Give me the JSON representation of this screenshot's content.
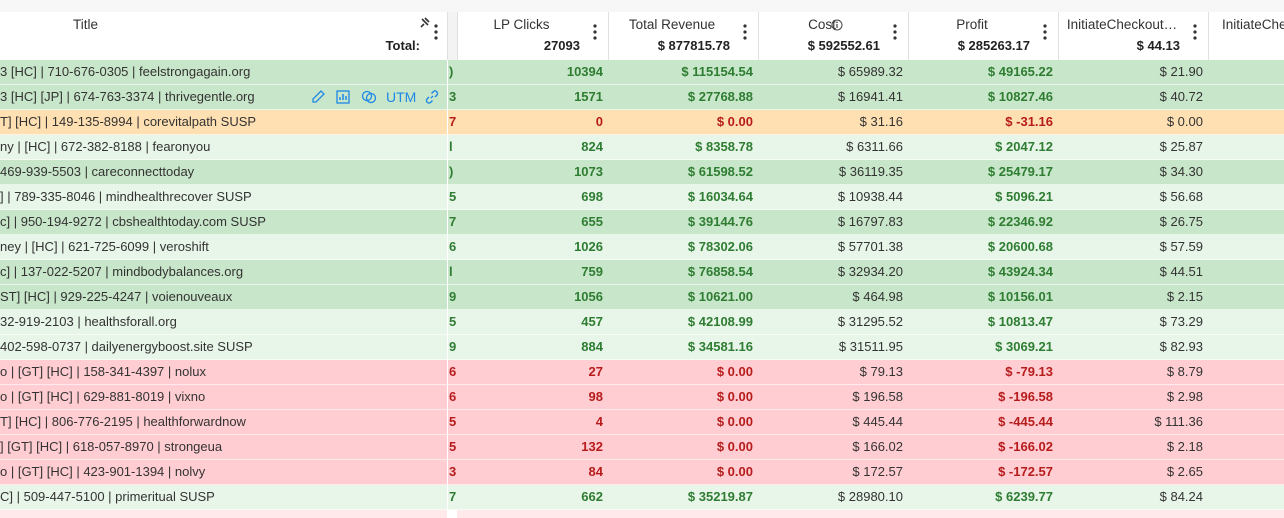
{
  "header": {
    "title_column": {
      "title": "Title",
      "total": "Total:"
    },
    "columns": [
      {
        "title": "LP Clicks",
        "total": "27093"
      },
      {
        "title": "Total Revenue",
        "total": "$ 877815.78"
      },
      {
        "title": "Cost",
        "total": "$ 592552.61"
      },
      {
        "title": "Profit",
        "total": "$ 285263.17"
      },
      {
        "title": "InitiateCheckout…",
        "total": "$ 44.13"
      },
      {
        "title": "InitiateChe"
      }
    ]
  },
  "rows": [
    {
      "color": "#c8e6c9",
      "value_color": "#2e7d32",
      "tail": ")",
      "title": "3 [HC] | 710-676-0305 | feelstrongagain.org",
      "clicks": 10394,
      "revenue": "$ 115154.54",
      "cost": "$ 65989.32",
      "profit": "$ 49165.22",
      "checkout": "$ 21.90"
    },
    {
      "color": "#c8e6c9",
      "value_color": "#2e7d32",
      "tail": "3",
      "title": "3 [HC] [JP] | 674-763-3374 | thrivegentle.org",
      "clicks": 1571,
      "revenue": "$ 27768.88",
      "cost": "$ 16941.41",
      "profit": "$ 10827.46",
      "checkout": "$ 40.72",
      "actions": {
        "utm": "UTM"
      }
    },
    {
      "color": "#ffe0b2",
      "value_color": "#b71c1c",
      "tail": "7",
      "title": "T] [HC] | 149-135-8994 | corevitalpath SUSP",
      "clicks": 0,
      "revenue": "$ 0.00",
      "cost": "$ 31.16",
      "profit": "$ -31.16",
      "checkout": "$ 0.00"
    },
    {
      "color": "#e8f5e9",
      "value_color": "#2e7d32",
      "tail": "l",
      "title": "ny | [HC] | 672-382-8188 | fearonyou",
      "clicks": 824,
      "revenue": "$ 8358.78",
      "cost": "$ 6311.66",
      "profit": "$ 2047.12",
      "checkout": "$ 25.87"
    },
    {
      "color": "#c8e6c9",
      "value_color": "#2e7d32",
      "tail": ")",
      "title": "469-939-5503 | careconnecttoday",
      "clicks": 1073,
      "revenue": "$ 61598.52",
      "cost": "$ 36119.35",
      "profit": "$ 25479.17",
      "checkout": "$ 34.30"
    },
    {
      "color": "#e8f5e9",
      "value_color": "#2e7d32",
      "tail": "5",
      "title": "] | 789-335-8046 | mindhealthrecover SUSP",
      "clicks": 698,
      "revenue": "$ 16034.64",
      "cost": "$ 10938.44",
      "profit": "$ 5096.21",
      "checkout": "$ 56.68"
    },
    {
      "color": "#c8e6c9",
      "value_color": "#2e7d32",
      "tail": "7",
      "title": "c] | 950-194-9272 | cbshealthtoday.com SUSP",
      "clicks": 655,
      "revenue": "$ 39144.76",
      "cost": "$ 16797.83",
      "profit": "$ 22346.92",
      "checkout": "$ 26.75"
    },
    {
      "color": "#e8f5e9",
      "value_color": "#2e7d32",
      "tail": "6",
      "title": "ney | [HC] | 621-725-6099 | veroshift",
      "clicks": 1026,
      "revenue": "$ 78302.06",
      "cost": "$ 57701.38",
      "profit": "$ 20600.68",
      "checkout": "$ 57.59"
    },
    {
      "color": "#c8e6c9",
      "value_color": "#2e7d32",
      "tail": "l",
      "title": "c] | 137-022-5207 | mindbodybalances.org",
      "clicks": 759,
      "revenue": "$ 76858.54",
      "cost": "$ 32934.20",
      "profit": "$ 43924.34",
      "checkout": "$ 44.51"
    },
    {
      "color": "#c8e6c9",
      "value_color": "#2e7d32",
      "tail": "9",
      "title": "ST] [HC] | 929-225-4247 | voienouveaux",
      "clicks": 1056,
      "revenue": "$ 10621.00",
      "cost": "$ 464.98",
      "profit": "$ 10156.01",
      "checkout": "$ 2.15"
    },
    {
      "color": "#e8f5e9",
      "value_color": "#2e7d32",
      "tail": "5",
      "title": "32-919-2103 | healthsforall.org",
      "clicks": 457,
      "revenue": "$ 42108.99",
      "cost": "$ 31295.52",
      "profit": "$ 10813.47",
      "checkout": "$ 73.29"
    },
    {
      "color": "#e8f5e9",
      "value_color": "#2e7d32",
      "tail": "9",
      "title": "402-598-0737 | dailyenergyboost.site SUSP",
      "clicks": 884,
      "revenue": "$ 34581.16",
      "cost": "$ 31511.95",
      "profit": "$ 3069.21",
      "checkout": "$ 82.93"
    },
    {
      "color": "#ffcdd2",
      "value_color": "#b71c1c",
      "tail": "6",
      "title": "o | [GT] [HC] | 158-341-4397 | nolux",
      "clicks": 27,
      "revenue": "$ 0.00",
      "cost": "$ 79.13",
      "profit": "$ -79.13",
      "checkout": "$ 8.79"
    },
    {
      "color": "#ffcdd2",
      "value_color": "#b71c1c",
      "tail": "6",
      "title": "o | [GT] [HC] | 629-881-8019 | vixno",
      "clicks": 98,
      "revenue": "$ 0.00",
      "cost": "$ 196.58",
      "profit": "$ -196.58",
      "checkout": "$ 2.98"
    },
    {
      "color": "#ffcdd2",
      "value_color": "#b71c1c",
      "tail": "5",
      "title": "T] [HC] | 806-776-2195 | healthforwardnow",
      "clicks": 4,
      "revenue": "$ 0.00",
      "cost": "$ 445.44",
      "profit": "$ -445.44",
      "checkout": "$ 111.36"
    },
    {
      "color": "#ffcdd2",
      "value_color": "#b71c1c",
      "tail": "5",
      "title": "] [GT] [HC] | 618-057-8970 | strongeua",
      "clicks": 132,
      "revenue": "$ 0.00",
      "cost": "$ 166.02",
      "profit": "$ -166.02",
      "checkout": "$ 2.18"
    },
    {
      "color": "#ffcdd2",
      "value_color": "#b71c1c",
      "tail": "3",
      "title": "o | [GT] [HC] | 423-901-1394 | nolvy",
      "clicks": 84,
      "revenue": "$ 0.00",
      "cost": "$ 172.57",
      "profit": "$ -172.57",
      "checkout": "$ 2.65"
    },
    {
      "color": "#e8f5e9",
      "value_color": "#2e7d32",
      "tail": "7",
      "title": "C] | 509-447-5100 | primeritual SUSP",
      "clicks": 662,
      "revenue": "$ 35219.87",
      "cost": "$ 28980.10",
      "profit": "$ 6239.77",
      "checkout": "$ 84.24"
    }
  ]
}
